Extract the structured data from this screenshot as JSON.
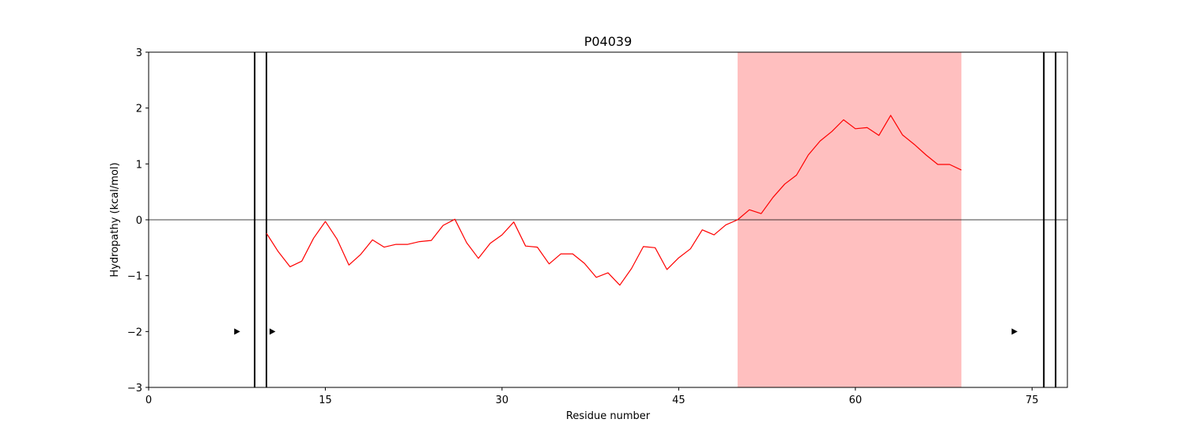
{
  "chart_data": {
    "type": "line",
    "title": "P04039",
    "xlabel": "Residue number",
    "ylabel": "Hydropathy (kcal/mol)",
    "xlim": [
      0,
      78
    ],
    "ylim": [
      -3,
      3
    ],
    "xticks": [
      0,
      15,
      30,
      45,
      60,
      75
    ],
    "yticks": [
      3,
      2,
      1,
      0,
      -1,
      -2,
      -3
    ],
    "ytick_labels": [
      "3",
      "2",
      "1",
      "0",
      "−1",
      "−2",
      "−3"
    ],
    "grid": false,
    "series": [
      {
        "color": "#ff0000",
        "x": [
          10,
          11,
          12,
          13,
          14,
          15,
          16,
          17,
          18,
          19,
          20,
          21,
          22,
          23,
          24,
          25,
          26,
          27,
          28,
          29,
          30,
          31,
          32,
          33,
          34,
          35,
          36,
          37,
          38,
          39,
          40,
          41,
          42,
          43,
          44,
          45,
          46,
          47,
          48,
          49,
          50,
          51,
          52,
          53,
          54,
          55,
          56,
          57,
          58,
          59,
          60,
          61,
          62,
          63,
          64,
          65,
          66,
          67,
          68,
          69
        ],
        "y": [
          -0.24,
          -0.57,
          -0.84,
          -0.74,
          -0.33,
          -0.03,
          -0.35,
          -0.81,
          -0.62,
          -0.36,
          -0.49,
          -0.44,
          -0.44,
          -0.39,
          -0.37,
          -0.1,
          0.01,
          -0.41,
          -0.69,
          -0.42,
          -0.27,
          -0.04,
          -0.47,
          -0.49,
          -0.79,
          -0.61,
          -0.61,
          -0.78,
          -1.03,
          -0.95,
          -1.17,
          -0.87,
          -0.48,
          -0.5,
          -0.89,
          -0.68,
          -0.52,
          -0.18,
          -0.27,
          -0.09,
          0.0,
          0.18,
          0.11,
          0.4,
          0.64,
          0.8,
          1.16,
          1.41,
          1.58,
          1.79,
          1.63,
          1.65,
          1.51,
          1.87,
          1.52,
          1.35,
          1.16,
          0.99,
          0.99,
          0.89
        ]
      }
    ],
    "baseline_y": 0,
    "shaded_region": {
      "x_start": 50,
      "x_end": 69,
      "color": "#ffbfbf"
    },
    "vertical_lines": [
      9,
      10,
      76,
      77
    ],
    "markers": [
      {
        "x": 7.5,
        "y": -2,
        "symbol": "triangle-right"
      },
      {
        "x": 10.5,
        "y": -2,
        "symbol": "triangle-right"
      },
      {
        "x": 73.5,
        "y": -2,
        "symbol": "triangle-right"
      }
    ]
  }
}
